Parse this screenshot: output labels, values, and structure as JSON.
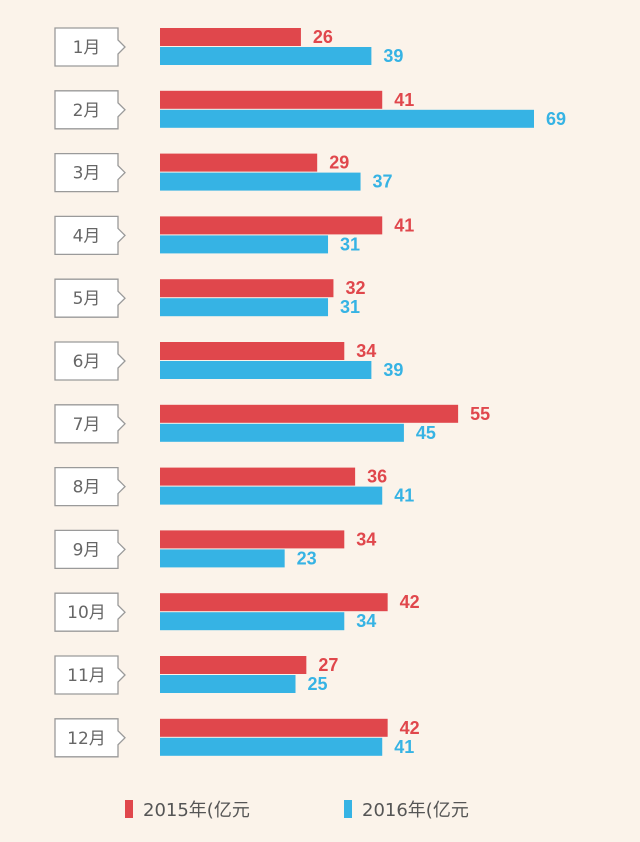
{
  "chart_data": {
    "type": "bar",
    "orientation": "horizontal",
    "categories": [
      "1月",
      "2月",
      "3月",
      "4月",
      "5月",
      "6月",
      "7月",
      "8月",
      "9月",
      "10月",
      "11月",
      "12月"
    ],
    "series": [
      {
        "name": "2015年(亿元",
        "color": "#e0474c",
        "values": [
          26,
          41,
          29,
          41,
          32,
          34,
          55,
          36,
          34,
          42,
          27,
          42
        ]
      },
      {
        "name": "2016年(亿元",
        "color": "#36b3e4",
        "values": [
          39,
          69,
          37,
          31,
          31,
          39,
          45,
          41,
          23,
          34,
          25,
          41
        ]
      }
    ],
    "xlim": [
      0,
      69
    ],
    "grid": false,
    "legend_position": "bottom"
  }
}
